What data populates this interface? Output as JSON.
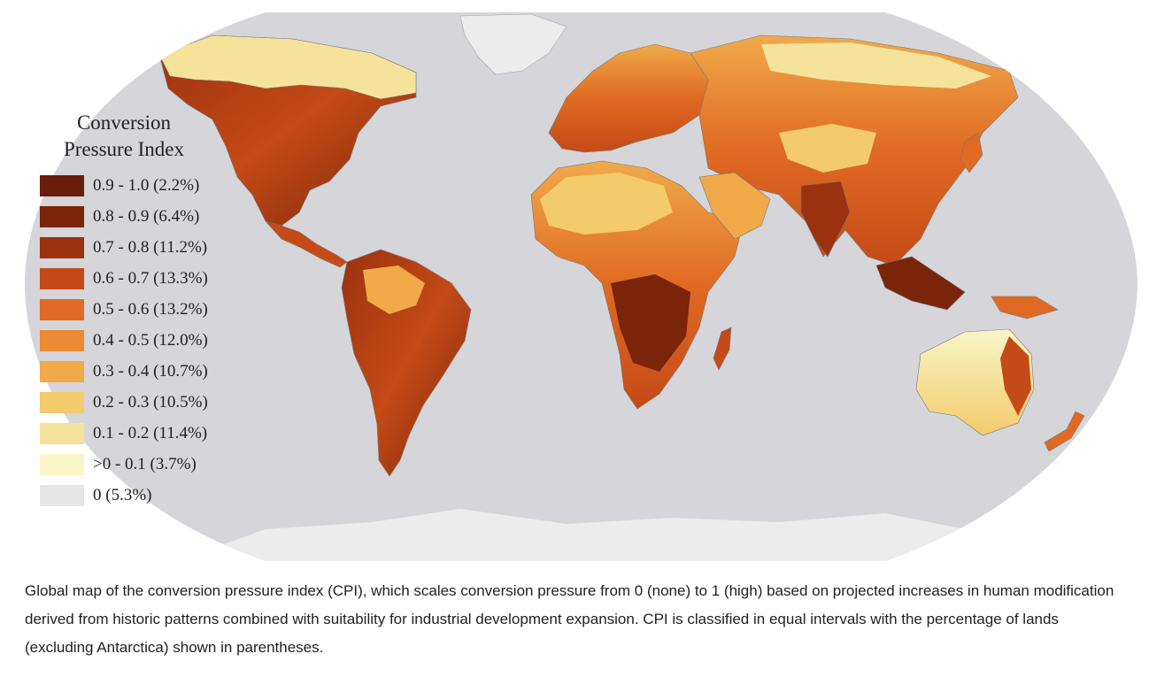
{
  "figure": {
    "legend": {
      "title_line1": "Conversion",
      "title_line2": "Pressure Index",
      "items": [
        {
          "range": "0.9 - 1.0",
          "percent": "(2.2%)",
          "label": "0.9 - 1.0 (2.2%)",
          "color": "#6b1d0b"
        },
        {
          "range": "0.8 - 0.9",
          "percent": "(6.4%)",
          "label": "0.8 - 0.9 (6.4%)",
          "color": "#7a2409"
        },
        {
          "range": "0.7 - 0.8",
          "percent": "(11.2%)",
          "label": "0.7 - 0.8 (11.2%)",
          "color": "#9b310f"
        },
        {
          "range": "0.6 - 0.7",
          "percent": "(13.3%)",
          "label": "0.6 - 0.7 (13.3%)",
          "color": "#c44a17"
        },
        {
          "range": "0.5 - 0.6",
          "percent": "(13.2%)",
          "label": "0.5 - 0.6 (13.2%)",
          "color": "#e06a23"
        },
        {
          "range": "0.4 - 0.5",
          "percent": "(12.0%)",
          "label": "0.4 - 0.5 (12.0%)",
          "color": "#ec8a35"
        },
        {
          "range": "0.3 - 0.4",
          "percent": "(10.7%)",
          "label": "0.3 - 0.4 (10.7%)",
          "color": "#f0aa4a"
        },
        {
          "range": "0.2 - 0.3",
          "percent": "(10.5%)",
          "label": "0.2 - 0.3 (10.5%)",
          "color": "#f3cb6b"
        },
        {
          "range": "0.1 - 0.2",
          "percent": "(11.4%)",
          "label": "0.1 - 0.2 (11.4%)",
          "color": "#f5e39c"
        },
        {
          "range": ">0 - 0.1",
          "percent": "(3.7%)",
          "label": ">0 - 0.1 (3.7%)",
          "color": "#f8f6c8"
        },
        {
          "range": "0",
          "percent": "(5.3%)",
          "label": "0 (5.3%)",
          "color": "#e6e6e6"
        }
      ]
    },
    "colors": {
      "ocean": "#d5d5da",
      "antarctica": "#ececec",
      "land_high": "#8a2a0c",
      "land_mid": "#e07a2a",
      "land_low": "#f4d67e"
    },
    "caption": "Global map of the conversion pressure index (CPI), which scales conversion pressure from 0 (none) to 1 (high) based on projected increases in human modification derived from historic patterns combined with suitability for industrial development expansion. CPI is classified in equal intervals with the percentage of lands (excluding Antarctica) shown in parentheses."
  }
}
